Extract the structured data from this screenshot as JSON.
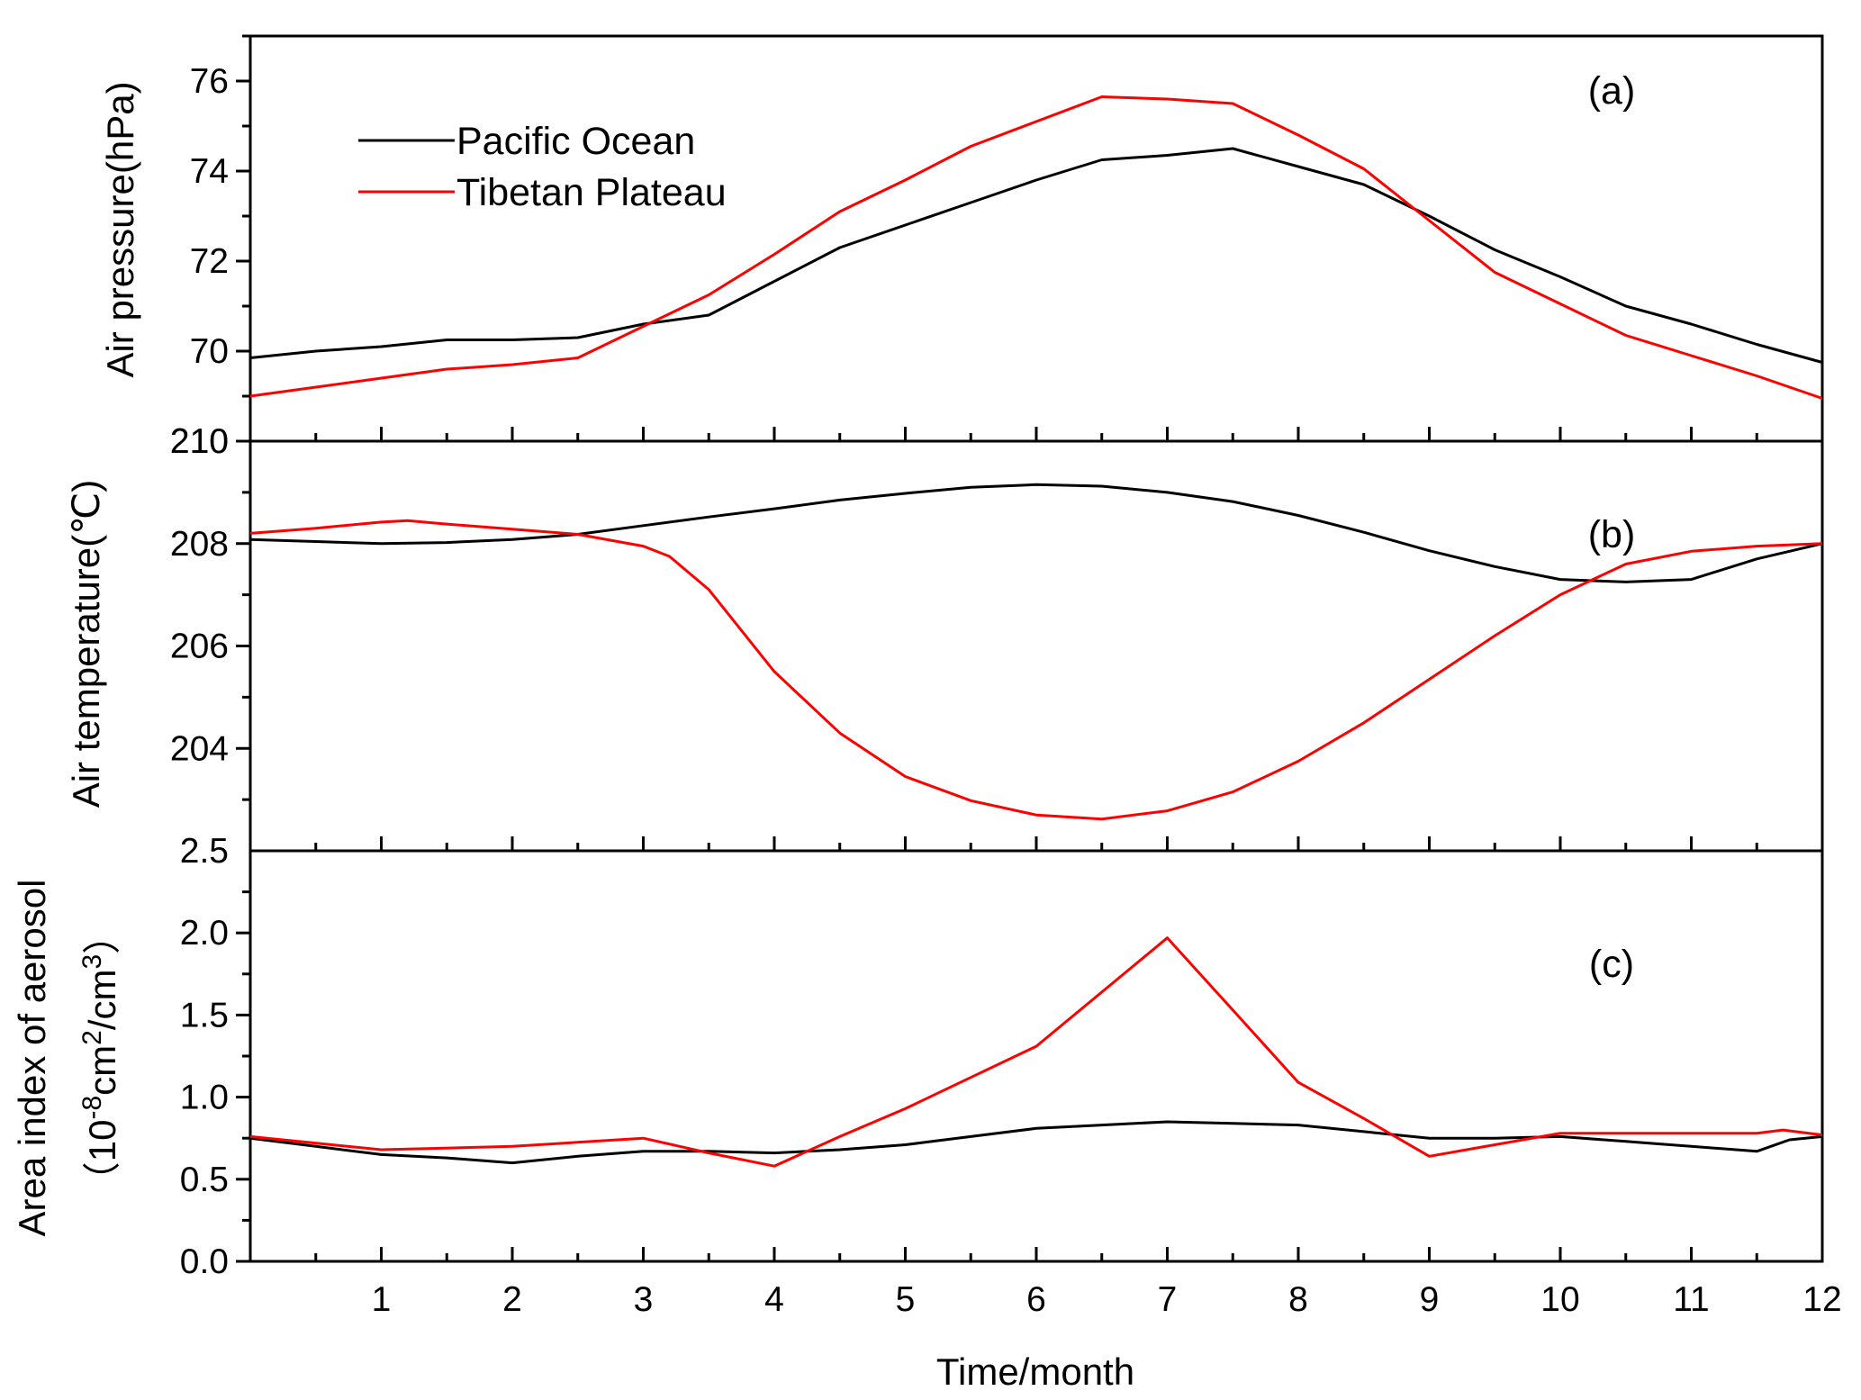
{
  "chart_data": {
    "type": "line",
    "x_axis": {
      "label": "Time/month",
      "range": [
        0,
        12
      ],
      "ticks": [
        1,
        2,
        3,
        4,
        5,
        6,
        7,
        8,
        9,
        10,
        11,
        12
      ],
      "tick_labels": [
        "1",
        "2",
        "3",
        "4",
        "5",
        "6",
        "7",
        "8",
        "9",
        "10",
        "11",
        "12"
      ]
    },
    "legend": {
      "placement": "top-left",
      "entries": [
        {
          "name": "Pacific Ocean",
          "color": "#000000"
        },
        {
          "name": "Tibetan Plateau",
          "color": "#ff0000"
        }
      ]
    },
    "panels": [
      {
        "id": "a",
        "label": "(a)",
        "ylabel": "Air pressure(hPa)",
        "ylim": [
          68,
          77
        ],
        "major_ticks": [
          70,
          72,
          74,
          76
        ],
        "tick_labels": [
          "70",
          "72",
          "74",
          "76"
        ],
        "bottom_label": "210",
        "series": [
          {
            "name": "Pacific Ocean",
            "color": "#000000",
            "x": [
              0,
              0.5,
              1,
              1.5,
              2,
              2.5,
              3,
              3.5,
              4,
              4.5,
              5,
              5.5,
              6,
              6.5,
              7,
              7.5,
              8,
              8.5,
              9,
              9.5,
              10,
              10.5,
              11,
              11.5,
              12
            ],
            "y": [
              69.85,
              70.0,
              70.1,
              70.25,
              70.25,
              70.3,
              70.6,
              70.8,
              71.55,
              72.3,
              72.8,
              73.3,
              73.8,
              74.25,
              74.35,
              74.5,
              74.1,
              73.7,
              73.0,
              72.25,
              71.65,
              71.0,
              70.6,
              70.15,
              69.75
            ]
          },
          {
            "name": "Tibetan Plateau",
            "color": "#ff0000",
            "x": [
              0,
              0.5,
              1,
              1.5,
              2,
              2.5,
              3,
              3.5,
              4,
              4.5,
              5,
              5.5,
              6,
              6.5,
              7,
              7.5,
              8,
              8.5,
              9,
              9.5,
              10,
              10.5,
              11,
              11.5,
              12
            ],
            "y": [
              69.0,
              69.2,
              69.4,
              69.6,
              69.7,
              69.85,
              70.55,
              71.25,
              72.15,
              73.1,
              73.8,
              74.55,
              75.1,
              75.65,
              75.6,
              75.5,
              74.8,
              74.05,
              72.9,
              71.75,
              71.05,
              70.35,
              69.9,
              69.45,
              68.95
            ]
          }
        ]
      },
      {
        "id": "b",
        "label": "(b)",
        "ylabel": "Air temperature(℃)",
        "ylim": [
          202.0,
          210.0
        ],
        "major_ticks": [
          204,
          206,
          208,
          210
        ],
        "tick_labels": [
          "204",
          "206",
          "208",
          "210"
        ],
        "bottom_label": "2.5",
        "series": [
          {
            "name": "Pacific Ocean",
            "color": "#000000",
            "x": [
              0,
              0.5,
              1,
              1.5,
              2,
              2.5,
              3,
              3.5,
              4,
              4.5,
              5,
              5.5,
              6,
              6.5,
              7,
              7.5,
              8,
              8.5,
              9,
              9.5,
              10,
              10.5,
              11,
              11.5,
              12
            ],
            "y": [
              208.08,
              208.04,
              208.0,
              208.02,
              208.08,
              208.18,
              208.35,
              208.52,
              208.68,
              208.85,
              208.98,
              209.1,
              209.15,
              209.12,
              209.0,
              208.82,
              208.55,
              208.22,
              207.86,
              207.55,
              207.3,
              207.25,
              207.3,
              207.7,
              208.0
            ]
          },
          {
            "name": "Tibetan Plateau",
            "color": "#ff0000",
            "x": [
              0,
              0.5,
              1,
              1.2,
              1.5,
              2,
              2.5,
              3,
              3.2,
              3.5,
              4,
              4.5,
              5,
              5.5,
              6,
              6.5,
              7,
              7.5,
              8,
              8.5,
              9,
              9.5,
              10,
              10.5,
              11,
              11.5,
              12
            ],
            "y": [
              208.2,
              208.3,
              208.42,
              208.45,
              208.38,
              208.28,
              208.18,
              207.95,
              207.75,
              207.1,
              205.5,
              204.3,
              203.45,
              202.98,
              202.7,
              202.62,
              202.78,
              203.15,
              203.75,
              204.5,
              205.35,
              206.2,
              207.0,
              207.6,
              207.85,
              207.95,
              208.0
            ]
          }
        ]
      },
      {
        "id": "c",
        "label": "(c)",
        "ylabel_line1": "Area index of aerosol",
        "ylabel_line2_prefix": "（10",
        "ylabel_sup1": "-8",
        "ylabel_line2_mid": "cm",
        "ylabel_sup2": "2",
        "ylabel_line2_mid2": "/cm",
        "ylabel_sup3": "3",
        "ylabel_line2_suffix": "）",
        "ylim": [
          0.0,
          2.5
        ],
        "major_ticks": [
          0.0,
          0.5,
          1.0,
          1.5,
          2.0
        ],
        "tick_labels": [
          "0.0",
          "0.5",
          "1.0",
          "1.5",
          "2.0"
        ],
        "series": [
          {
            "name": "Pacific Ocean",
            "color": "#000000",
            "x": [
              0,
              0.5,
              1,
              1.5,
              2,
              2.5,
              3,
              3.5,
              4,
              4.5,
              5,
              5.5,
              6,
              6.5,
              7,
              7.5,
              8,
              8.5,
              9,
              9.5,
              10,
              10.5,
              11,
              11.5,
              11.75,
              12
            ],
            "y": [
              0.75,
              0.7,
              0.65,
              0.63,
              0.6,
              0.64,
              0.67,
              0.67,
              0.66,
              0.68,
              0.71,
              0.76,
              0.81,
              0.83,
              0.85,
              0.84,
              0.83,
              0.79,
              0.75,
              0.75,
              0.76,
              0.73,
              0.7,
              0.67,
              0.74,
              0.76
            ]
          },
          {
            "name": "Tibetan Plateau",
            "color": "#ff0000",
            "x": [
              0,
              1,
              2,
              3,
              3.5,
              4,
              4.5,
              5,
              5.5,
              6,
              6.5,
              7,
              7.5,
              8,
              8.5,
              9,
              9.5,
              10,
              10.5,
              11,
              11.5,
              11.7,
              12
            ],
            "y": [
              0.76,
              0.68,
              0.7,
              0.75,
              0.66,
              0.58,
              0.76,
              0.93,
              1.12,
              1.31,
              1.64,
              1.97,
              1.53,
              1.09,
              0.87,
              0.64,
              0.71,
              0.78,
              0.78,
              0.78,
              0.78,
              0.8,
              0.77
            ]
          }
        ]
      }
    ]
  }
}
